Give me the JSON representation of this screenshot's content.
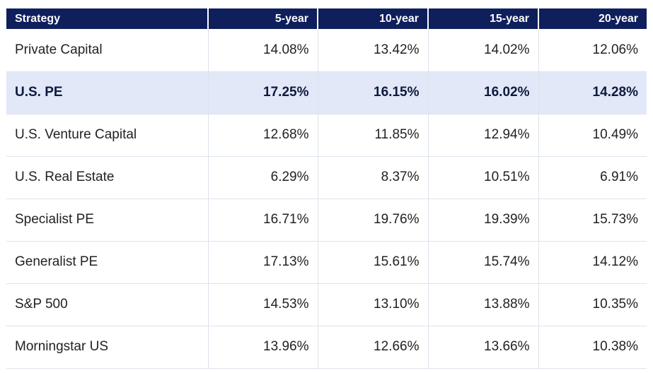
{
  "chart_data": {
    "type": "table",
    "columns": [
      "Strategy",
      "5-year",
      "10-year",
      "15-year",
      "20-year"
    ],
    "highlighted_row": 1,
    "colors": {
      "header_bg": "#0f1f5c",
      "header_text": "#ffffff",
      "highlight_bg": "#e3e8f8",
      "border": "#dde3ec"
    },
    "rows": [
      {
        "strategy": "Private Capital",
        "cells": [
          "14.08%",
          "13.42%",
          "14.02%",
          "12.06%"
        ]
      },
      {
        "strategy": "U.S. PE",
        "cells": [
          "17.25%",
          "16.15%",
          "16.02%",
          "14.28%"
        ]
      },
      {
        "strategy": "U.S. Venture Capital",
        "cells": [
          "12.68%",
          "11.85%",
          "12.94%",
          "10.49%"
        ]
      },
      {
        "strategy": "U.S. Real Estate",
        "cells": [
          "6.29%",
          "8.37%",
          "10.51%",
          "6.91%"
        ]
      },
      {
        "strategy": "Specialist PE",
        "cells": [
          "16.71%",
          "19.76%",
          "19.39%",
          "15.73%"
        ]
      },
      {
        "strategy": "Generalist PE",
        "cells": [
          "17.13%",
          "15.61%",
          "15.74%",
          "14.12%"
        ]
      },
      {
        "strategy": "S&P 500",
        "cells": [
          "14.53%",
          "13.10%",
          "13.88%",
          "10.35%"
        ]
      },
      {
        "strategy": "Morningstar US",
        "cells": [
          "13.96%",
          "12.66%",
          "13.66%",
          "10.38%"
        ]
      }
    ]
  }
}
